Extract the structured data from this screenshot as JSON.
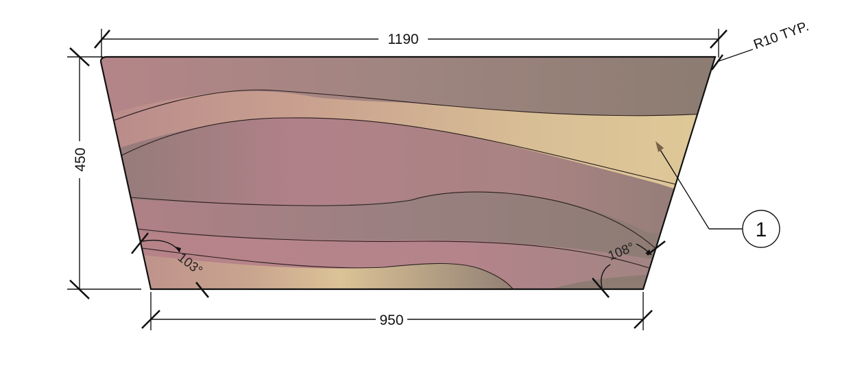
{
  "dimensions": {
    "top_width": "1190",
    "bottom_width": "950",
    "height": "450",
    "corner_radius_note": "R10 TYP."
  },
  "angles": {
    "left_angle": "103°",
    "right_angle": "108°"
  },
  "callout": {
    "number": "1"
  },
  "colors": {
    "mauve": "#b5858a",
    "taupe": "#8f7c75",
    "sand": "#dcc797",
    "line": "#111111"
  }
}
